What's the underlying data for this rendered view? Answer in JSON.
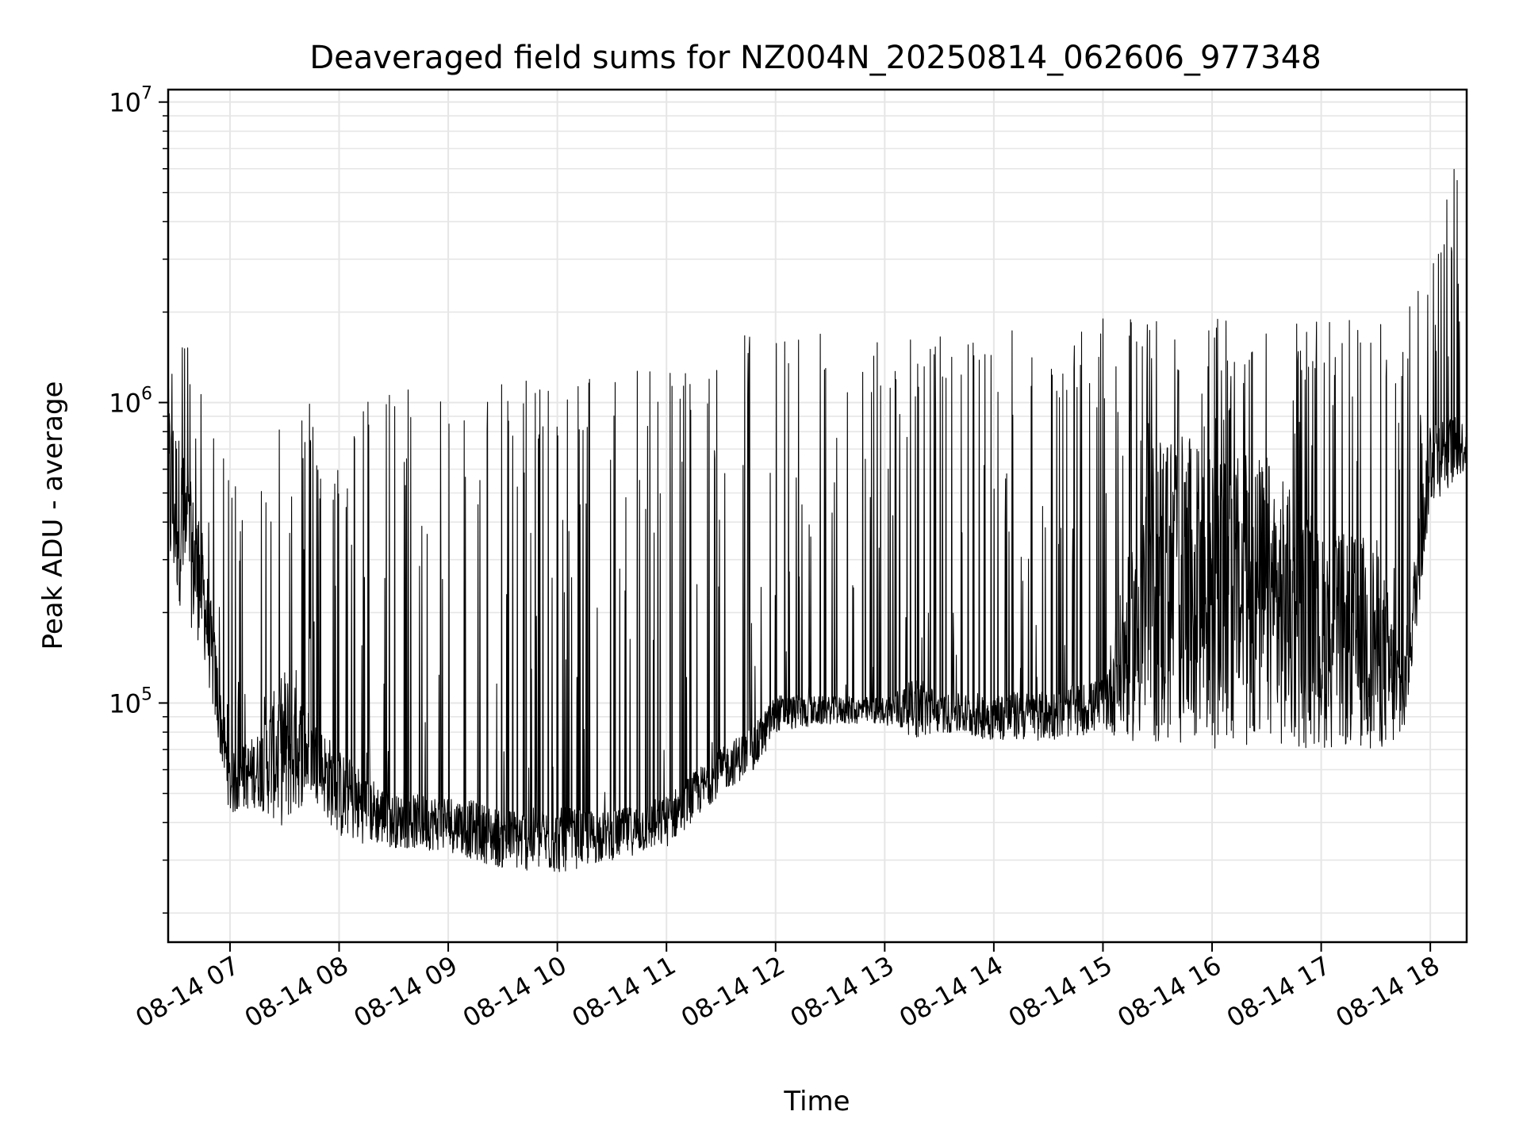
{
  "chart_data": {
    "type": "line",
    "title": "Deaveraged field sums for NZ004N_20250814_062606_977348",
    "xlabel": "Time",
    "ylabel": "Peak ADU - average",
    "yscale": "log",
    "ylim": [
      16000,
      11000000
    ],
    "xlim": [
      "2025-08-14 06:26",
      "2025-08-14 18:20"
    ],
    "grid": true,
    "line_color": "#000000",
    "grid_color": "#e6e6e6",
    "x_ticks": [
      "2025-08-14 07:00",
      "2025-08-14 08:00",
      "2025-08-14 09:00",
      "2025-08-14 10:00",
      "2025-08-14 11:00",
      "2025-08-14 12:00",
      "2025-08-14 13:00",
      "2025-08-14 14:00",
      "2025-08-14 15:00",
      "2025-08-14 16:00",
      "2025-08-14 17:00",
      "2025-08-14 18:00"
    ],
    "x_tick_labels": [
      "08-14 07",
      "08-14 08",
      "08-14 09",
      "08-14 10",
      "08-14 11",
      "08-14 12",
      "08-14 13",
      "08-14 14",
      "08-14 15",
      "08-14 16",
      "08-14 17",
      "08-14 18"
    ],
    "y_ticks": [
      100000,
      1000000,
      10000000
    ],
    "y_tick_base": "10",
    "y_tick_exponents": [
      "5",
      "6",
      "7"
    ],
    "x": [
      "2025-08-14 06:26",
      "2025-08-14 06:45",
      "2025-08-14 07:00",
      "2025-08-14 07:15",
      "2025-08-14 07:30",
      "2025-08-14 07:45",
      "2025-08-14 08:00",
      "2025-08-14 08:30",
      "2025-08-14 09:00",
      "2025-08-14 09:30",
      "2025-08-14 10:00",
      "2025-08-14 10:30",
      "2025-08-14 11:00",
      "2025-08-14 11:30",
      "2025-08-14 11:50",
      "2025-08-14 12:00",
      "2025-08-14 12:30",
      "2025-08-14 13:00",
      "2025-08-14 13:20",
      "2025-08-14 13:30",
      "2025-08-14 14:00",
      "2025-08-14 14:30",
      "2025-08-14 15:00",
      "2025-08-14 15:30",
      "2025-08-14 16:00",
      "2025-08-14 16:30",
      "2025-08-14 17:00",
      "2025-08-14 17:30",
      "2025-08-14 17:45",
      "2025-08-14 18:00",
      "2025-08-14 18:20"
    ],
    "y_low": [
      250000,
      150000,
      42000,
      45000,
      38000,
      50000,
      35000,
      33000,
      32000,
      28000,
      27000,
      30000,
      33000,
      50000,
      60000,
      80000,
      85000,
      85000,
      75000,
      80000,
      75000,
      75000,
      80000,
      70000,
      70000,
      70000,
      70000,
      70000,
      70000,
      450000,
      600000
    ],
    "y_mid": [
      800000,
      300000,
      60000,
      70000,
      100000,
      80000,
      60000,
      45000,
      45000,
      40000,
      40000,
      40000,
      45000,
      65000,
      80000,
      100000,
      100000,
      100000,
      110000,
      100000,
      100000,
      100000,
      110000,
      500000,
      400000,
      400000,
      250000,
      250000,
      120000,
      800000,
      800000
    ],
    "y_high": [
      2500000,
      1200000,
      550000,
      600000,
      1300000,
      1000000,
      800000,
      1300000,
      1400000,
      1200000,
      1300000,
      1300000,
      1400000,
      1600000,
      1800000,
      1900000,
      1800000,
      1700000,
      1700000,
      1800000,
      1800000,
      1800000,
      1900000,
      1900000,
      1900000,
      1900000,
      1900000,
      1900000,
      1900000,
      3800000,
      8500000
    ]
  }
}
